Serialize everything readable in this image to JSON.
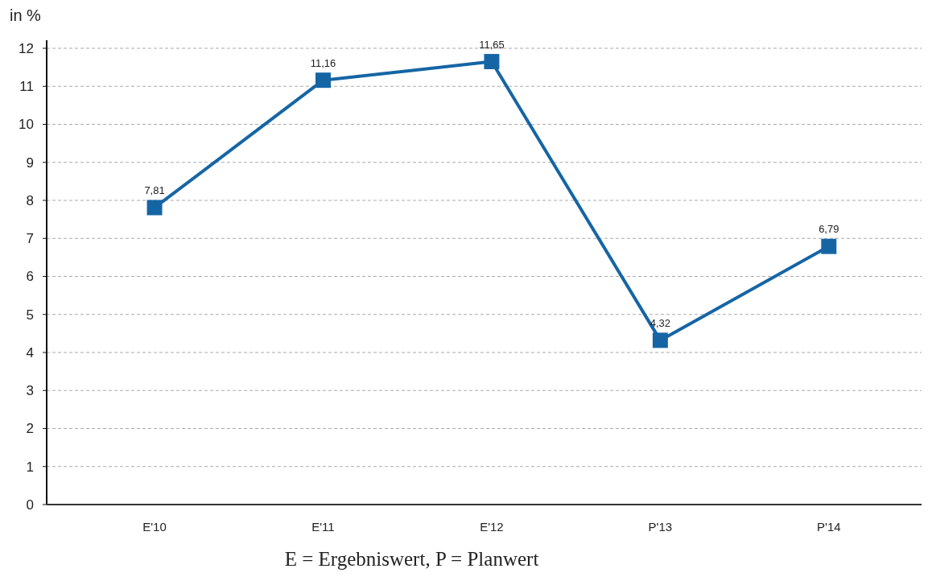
{
  "chart_data": {
    "type": "line",
    "ylabel": "in %",
    "categories": [
      "E'10",
      "E'11",
      "E'12",
      "P'13",
      "P'14"
    ],
    "series": [
      {
        "color": "#1565a5",
        "values": [
          7.81,
          11.16,
          11.65,
          4.32,
          6.79
        ],
        "value_labels": [
          "7,81",
          "11,16",
          "11,65",
          "4,32",
          "6,79"
        ]
      }
    ],
    "ylim": [
      0,
      12
    ],
    "yticks": [
      0,
      1,
      2,
      3,
      4,
      5,
      6,
      7,
      8,
      9,
      10,
      11,
      12
    ],
    "grid": "y",
    "marker": "square",
    "line_style": "solid",
    "annotations": [
      "E = Ergebniswert, P = Planwert"
    ]
  }
}
